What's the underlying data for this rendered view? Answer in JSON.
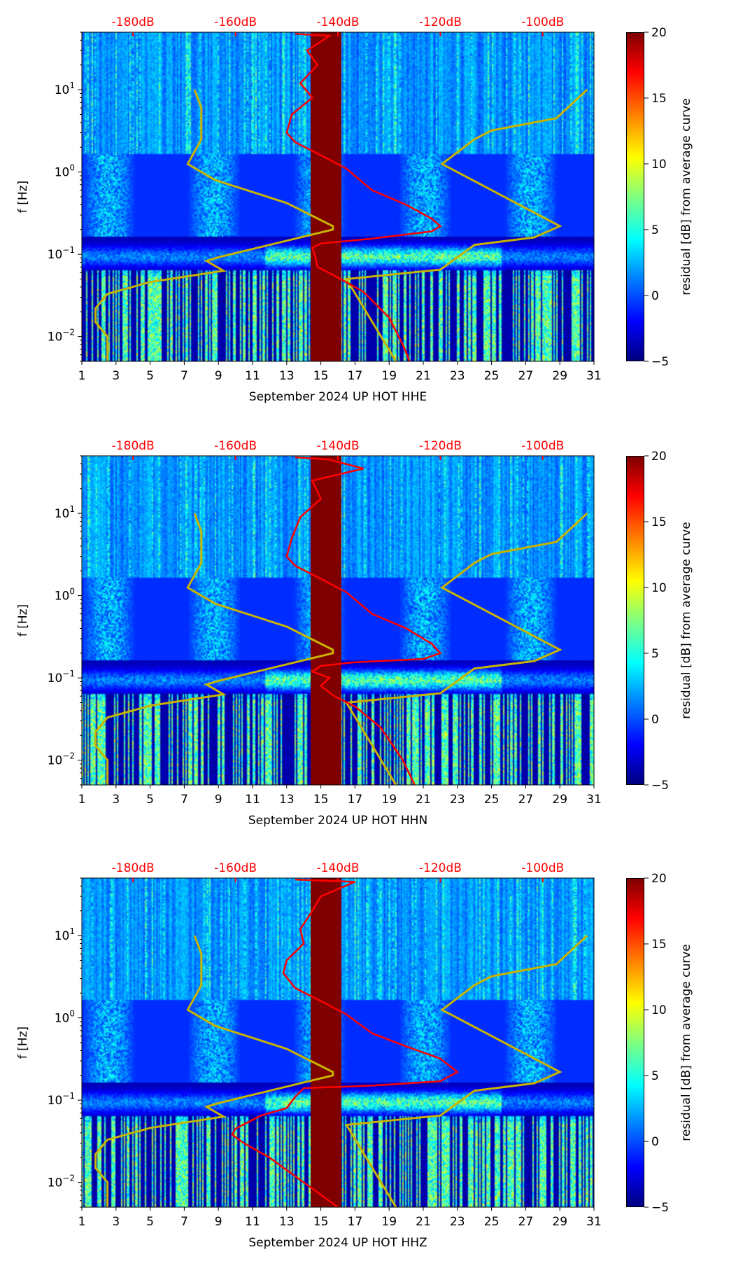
{
  "chart_data": [
    {
      "type": "heatmap",
      "title": "",
      "xlabel": "September 2024 UP HOT  HHE",
      "ylabel": "f [Hz]",
      "colorbar_label": "residual [dB] from average curve",
      "xlim": [
        1,
        31
      ],
      "ylim": [
        0.005,
        50
      ],
      "yscale": "log",
      "xticks": [
        "1",
        "3",
        "5",
        "7",
        "9",
        "11",
        "13",
        "15",
        "17",
        "19",
        "21",
        "23",
        "25",
        "27",
        "29",
        "31"
      ],
      "yticks": [
        "10^-2",
        "10^-1",
        "10^0",
        "10^1"
      ],
      "colorbar_ticks": [
        "−5",
        "0",
        "5",
        "10",
        "15",
        "20"
      ],
      "colorbar_range": [
        -5,
        20
      ],
      "top_axis_labels": [
        "-180dB",
        "-160dB",
        "-140dB",
        "-120dB",
        "-100dB"
      ],
      "top_axis_days": [
        4,
        10,
        16,
        22,
        28
      ],
      "data_gap_days": [
        14.4,
        16.2
      ],
      "red_curve": [
        [
          13.5,
          48
        ],
        [
          15.5,
          45
        ],
        [
          14.2,
          30
        ],
        [
          14.8,
          20
        ],
        [
          13.8,
          12
        ],
        [
          14.5,
          8
        ],
        [
          13.3,
          5
        ],
        [
          13,
          3
        ],
        [
          13.5,
          2.3
        ],
        [
          15,
          1.6
        ],
        [
          16.5,
          1.1
        ],
        [
          18,
          0.6
        ],
        [
          20,
          0.4
        ],
        [
          21.5,
          0.27
        ],
        [
          22,
          0.22
        ],
        [
          21.5,
          0.19
        ],
        [
          18,
          0.155
        ],
        [
          15,
          0.135
        ],
        [
          14.5,
          0.12
        ],
        [
          14.7,
          0.09
        ],
        [
          14.8,
          0.07
        ],
        [
          15.8,
          0.055
        ],
        [
          17.5,
          0.035
        ],
        [
          19,
          0.017
        ],
        [
          19.8,
          0.008
        ],
        [
          20.2,
          0.005
        ]
      ],
      "nlnm_curve": [
        [
          7.6,
          10
        ],
        [
          8,
          6
        ],
        [
          8,
          2.5
        ],
        [
          7.2,
          1.25
        ],
        [
          8.8,
          0.8
        ],
        [
          13,
          0.42
        ],
        [
          15.7,
          0.22
        ],
        [
          15.7,
          0.2
        ],
        [
          9,
          0.092
        ],
        [
          8.3,
          0.083
        ],
        [
          9.3,
          0.063
        ],
        [
          5,
          0.046
        ],
        [
          2.5,
          0.033
        ],
        [
          1.8,
          0.022
        ],
        [
          1.8,
          0.015
        ],
        [
          2.5,
          0.01
        ],
        [
          2.5,
          0.005
        ]
      ],
      "nhnm_curve": [
        [
          30.6,
          10
        ],
        [
          28.8,
          4.5
        ],
        [
          25,
          3.2
        ],
        [
          24,
          2.5
        ],
        [
          22.1,
          1.25
        ],
        [
          29,
          0.22
        ],
        [
          27.5,
          0.16
        ],
        [
          24,
          0.13
        ],
        [
          22,
          0.065
        ],
        [
          16.5,
          0.05
        ],
        [
          19.4,
          0.005
        ]
      ]
    },
    {
      "type": "heatmap",
      "title": "",
      "xlabel": "September 2024 UP HOT  HHN",
      "ylabel": "f [Hz]",
      "colorbar_label": "residual [dB] from average curve",
      "xlim": [
        1,
        31
      ],
      "ylim": [
        0.005,
        50
      ],
      "yscale": "log",
      "xticks": [
        "1",
        "3",
        "5",
        "7",
        "9",
        "11",
        "13",
        "15",
        "17",
        "19",
        "21",
        "23",
        "25",
        "27",
        "29",
        "31"
      ],
      "yticks": [
        "10^-2",
        "10^-1",
        "10^0",
        "10^1"
      ],
      "colorbar_ticks": [
        "−5",
        "0",
        "5",
        "10",
        "15",
        "20"
      ],
      "colorbar_range": [
        -5,
        20
      ],
      "top_axis_labels": [
        "-180dB",
        "-160dB",
        "-140dB",
        "-120dB",
        "-100dB"
      ],
      "top_axis_days": [
        4,
        10,
        16,
        22,
        28
      ],
      "data_gap_days": [
        14.4,
        16.2
      ],
      "red_curve": [
        [
          13.5,
          48
        ],
        [
          15.5,
          45
        ],
        [
          17.5,
          35
        ],
        [
          14.5,
          25
        ],
        [
          15,
          15
        ],
        [
          13.8,
          9
        ],
        [
          13.3,
          5
        ],
        [
          13,
          3
        ],
        [
          13.5,
          2.3
        ],
        [
          15,
          1.6
        ],
        [
          16.5,
          1.1
        ],
        [
          18,
          0.6
        ],
        [
          20,
          0.4
        ],
        [
          21.5,
          0.26
        ],
        [
          22,
          0.2
        ],
        [
          21,
          0.17
        ],
        [
          17,
          0.155
        ],
        [
          15,
          0.14
        ],
        [
          14.5,
          0.12
        ],
        [
          15.5,
          0.1
        ],
        [
          15,
          0.08
        ],
        [
          15.8,
          0.06
        ],
        [
          17,
          0.045
        ],
        [
          18.5,
          0.025
        ],
        [
          19.8,
          0.01
        ],
        [
          20.5,
          0.005
        ]
      ],
      "nlnm_curve": [
        [
          7.6,
          10
        ],
        [
          8,
          6
        ],
        [
          8,
          2.5
        ],
        [
          7.2,
          1.25
        ],
        [
          8.8,
          0.8
        ],
        [
          13,
          0.42
        ],
        [
          15.7,
          0.22
        ],
        [
          15.7,
          0.2
        ],
        [
          9,
          0.092
        ],
        [
          8.3,
          0.083
        ],
        [
          9.3,
          0.063
        ],
        [
          5,
          0.046
        ],
        [
          2.5,
          0.033
        ],
        [
          1.8,
          0.022
        ],
        [
          1.8,
          0.015
        ],
        [
          2.5,
          0.01
        ],
        [
          2.5,
          0.005
        ]
      ],
      "nhnm_curve": [
        [
          30.6,
          10
        ],
        [
          28.8,
          4.5
        ],
        [
          25,
          3.2
        ],
        [
          24,
          2.5
        ],
        [
          22.1,
          1.25
        ],
        [
          29,
          0.22
        ],
        [
          27.5,
          0.16
        ],
        [
          24,
          0.13
        ],
        [
          22,
          0.065
        ],
        [
          16.5,
          0.05
        ],
        [
          19.4,
          0.005
        ]
      ]
    },
    {
      "type": "heatmap",
      "title": "",
      "xlabel": "September 2024 UP HOT  HHZ",
      "ylabel": "f [Hz]",
      "colorbar_label": "residual [dB] from average curve",
      "xlim": [
        1,
        31
      ],
      "ylim": [
        0.005,
        50
      ],
      "yscale": "log",
      "xticks": [
        "1",
        "3",
        "5",
        "7",
        "9",
        "11",
        "13",
        "15",
        "17",
        "19",
        "21",
        "23",
        "25",
        "27",
        "29",
        "31"
      ],
      "yticks": [
        "10^-2",
        "10^-1",
        "10^0",
        "10^1"
      ],
      "colorbar_ticks": [
        "−5",
        "0",
        "5",
        "10",
        "15",
        "20"
      ],
      "colorbar_range": [
        -5,
        20
      ],
      "top_axis_labels": [
        "-180dB",
        "-160dB",
        "-140dB",
        "-120dB",
        "-100dB"
      ],
      "top_axis_days": [
        4,
        10,
        16,
        22,
        28
      ],
      "data_gap_days": [
        14.4,
        16.2
      ],
      "red_curve": [
        [
          13.5,
          48
        ],
        [
          17,
          45
        ],
        [
          15,
          30
        ],
        [
          14.5,
          20
        ],
        [
          13.8,
          12
        ],
        [
          14,
          8
        ],
        [
          13,
          5
        ],
        [
          12.8,
          3.5
        ],
        [
          13.5,
          2.3
        ],
        [
          15,
          1.6
        ],
        [
          16.5,
          1.1
        ],
        [
          18,
          0.65
        ],
        [
          20,
          0.45
        ],
        [
          22,
          0.32
        ],
        [
          23,
          0.22
        ],
        [
          22,
          0.17
        ],
        [
          18,
          0.15
        ],
        [
          14,
          0.14
        ],
        [
          13.5,
          0.11
        ],
        [
          13,
          0.08
        ],
        [
          11.5,
          0.065
        ],
        [
          10,
          0.045
        ],
        [
          9.8,
          0.038
        ],
        [
          10.5,
          0.03
        ],
        [
          12,
          0.02
        ],
        [
          14,
          0.01
        ],
        [
          16,
          0.005
        ]
      ],
      "nlnm_curve": [
        [
          7.6,
          10
        ],
        [
          8,
          6
        ],
        [
          8,
          2.5
        ],
        [
          7.2,
          1.25
        ],
        [
          8.8,
          0.8
        ],
        [
          13,
          0.42
        ],
        [
          15.7,
          0.22
        ],
        [
          15.7,
          0.2
        ],
        [
          9,
          0.092
        ],
        [
          8.3,
          0.083
        ],
        [
          9.3,
          0.063
        ],
        [
          5,
          0.046
        ],
        [
          2.5,
          0.033
        ],
        [
          1.8,
          0.022
        ],
        [
          1.8,
          0.015
        ],
        [
          2.5,
          0.01
        ],
        [
          2.5,
          0.005
        ]
      ],
      "nhnm_curve": [
        [
          30.6,
          10
        ],
        [
          28.8,
          4.5
        ],
        [
          25,
          3.2
        ],
        [
          24,
          2.5
        ],
        [
          22.1,
          1.25
        ],
        [
          29,
          0.22
        ],
        [
          27.5,
          0.16
        ],
        [
          24,
          0.13
        ],
        [
          22,
          0.065
        ],
        [
          16.5,
          0.05
        ],
        [
          19.4,
          0.005
        ]
      ]
    }
  ],
  "colors": {
    "red_curve": "#ff0000",
    "noise_model": "#c8b400",
    "gap": "#7f0000",
    "top_axis": "#ff0000"
  }
}
